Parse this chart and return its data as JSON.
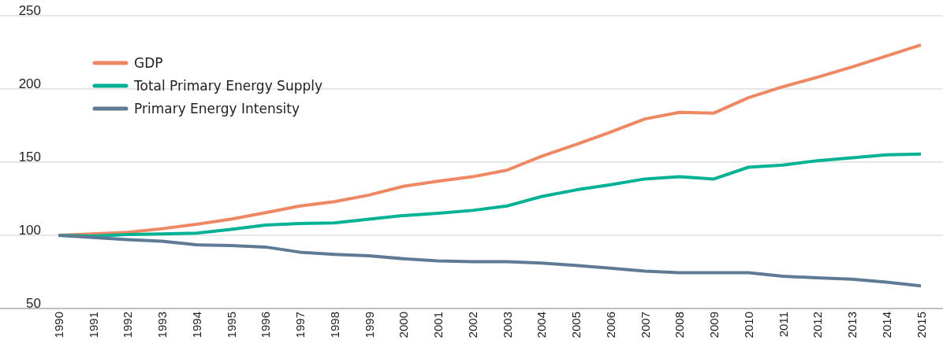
{
  "chart_data": {
    "type": "line",
    "categories": [
      "1990",
      "1991",
      "1992",
      "1993",
      "1994",
      "1995",
      "1996",
      "1997",
      "1998",
      "1999",
      "2000",
      "2001",
      "2002",
      "2003",
      "2004",
      "2005",
      "2006",
      "2007",
      "2008",
      "2009",
      "2010",
      "2011",
      "2012",
      "2013",
      "2014",
      "2015"
    ],
    "series": [
      {
        "name": "GDP",
        "color": "#f08763",
        "values": [
          100,
          101,
          102,
          104.5,
          107.5,
          111,
          115.5,
          120,
          123,
          127.5,
          133.5,
          137,
          140,
          144.5,
          154,
          162,
          170.5,
          179.5,
          184,
          183.5,
          194,
          201.5,
          208,
          215,
          222.5,
          230
        ]
      },
      {
        "name": "Total Primary Energy Supply",
        "color": "#00b294",
        "values": [
          100,
          99.5,
          100.5,
          101,
          101.5,
          104,
          107,
          108,
          108.5,
          111,
          113.5,
          115,
          117,
          120,
          126.5,
          131,
          134.5,
          138.5,
          140,
          138.5,
          146.5,
          148,
          151,
          153,
          155,
          155.5
        ]
      },
      {
        "name": "Primary Energy Intensity",
        "color": "#5f7a94",
        "values": [
          100,
          98.5,
          97,
          96,
          93.5,
          93,
          92,
          88.5,
          87,
          86,
          84,
          82.5,
          82,
          82,
          81,
          79.5,
          77.5,
          75.5,
          74.5,
          74.5,
          74.5,
          72,
          71,
          70,
          68,
          65.5
        ]
      }
    ],
    "ylim": [
      50,
      250
    ],
    "yticks": [
      50,
      100,
      150,
      200,
      250
    ],
    "grid": "y",
    "legend": "top left",
    "marker": "none",
    "line_style": "solid"
  }
}
